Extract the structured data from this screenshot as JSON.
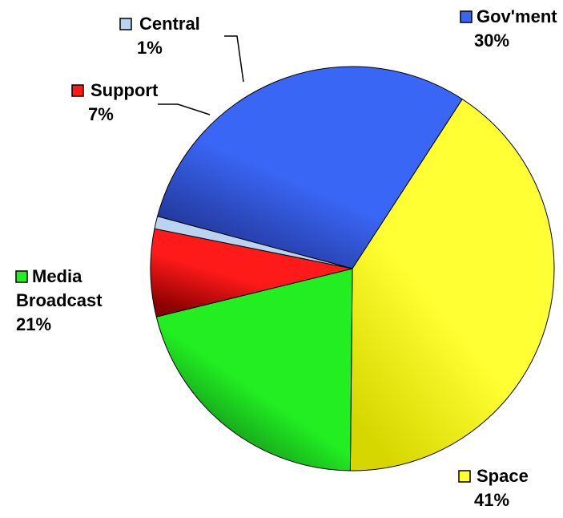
{
  "chart_data": {
    "type": "pie",
    "title": "",
    "slices": [
      {
        "label": "Gov'ment",
        "lines": [
          "Gov'ment"
        ],
        "value": 30,
        "value_label": "30%",
        "color": "#3a66f5",
        "dark": "#1e2f8a"
      },
      {
        "label": "Space",
        "lines": [
          "Space"
        ],
        "value": 41,
        "value_label": "41%",
        "color": "#ffff33",
        "dark": "#d6d600"
      },
      {
        "label": "Media Broadcast",
        "lines": [
          "Media",
          "Broadcast"
        ],
        "value": 21,
        "value_label": "21%",
        "color": "#22ee22",
        "dark": "#0b6a14"
      },
      {
        "label": "Support",
        "lines": [
          "Support"
        ],
        "value": 7,
        "value_label": "7%",
        "color": "#ff1a1a",
        "dark": "#8a0000"
      },
      {
        "label": "Central",
        "lines": [
          "Central"
        ],
        "value": 1,
        "value_label": "1%",
        "color": "#b8d4f0",
        "dark": "#8fb0d4"
      }
    ],
    "legend": "none"
  }
}
